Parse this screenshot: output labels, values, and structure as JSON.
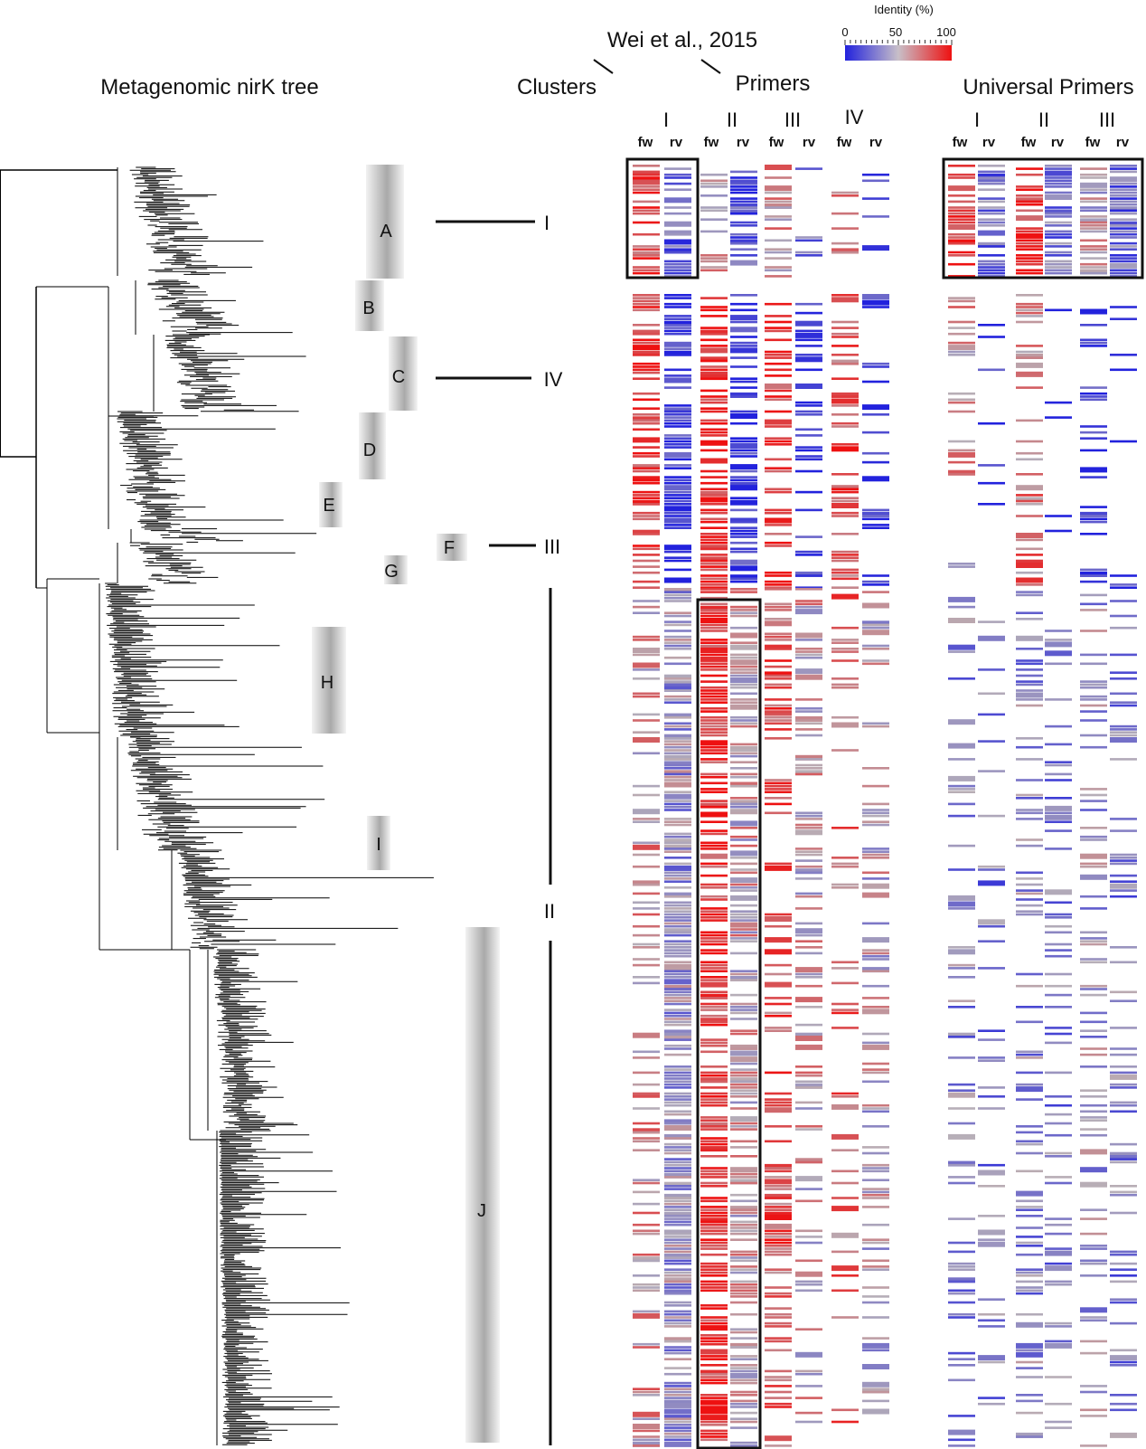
{
  "figure": {
    "tree_title": "Metagenomic nirK tree",
    "clusters_label": "Clusters",
    "reference_label": "Wei et al., 2015",
    "primers_label": "Primers",
    "universal_label": "Universal Primers",
    "legend": {
      "title": "Identity (%)",
      "ticks": [
        "0",
        "50",
        "100"
      ],
      "low_color": "#2222dd",
      "mid_color": "#b8b0b8",
      "high_color": "#ee1111"
    },
    "direction_labels": {
      "fw": "fw",
      "rv": "rv"
    },
    "clades": [
      {
        "id": "A",
        "label": "A",
        "cluster": "I"
      },
      {
        "id": "B",
        "label": "B",
        "cluster": ""
      },
      {
        "id": "C",
        "label": "C",
        "cluster": "IV"
      },
      {
        "id": "D",
        "label": "D",
        "cluster": ""
      },
      {
        "id": "E",
        "label": "E",
        "cluster": ""
      },
      {
        "id": "F",
        "label": "F",
        "cluster": "III"
      },
      {
        "id": "G",
        "label": "G",
        "cluster": ""
      },
      {
        "id": "H",
        "label": "H",
        "cluster": "II"
      },
      {
        "id": "I",
        "label": "I",
        "cluster": "II"
      },
      {
        "id": "J",
        "label": "J",
        "cluster": "II"
      }
    ],
    "cluster_labels": [
      "I",
      "IV",
      "III",
      "II"
    ],
    "wei_primer_sets": [
      "I",
      "II",
      "III",
      "IV"
    ],
    "universal_primer_sets": [
      "I",
      "II",
      "III"
    ],
    "highlight_boxes": [
      {
        "panel": "wei",
        "set": "I",
        "region": "clade A"
      },
      {
        "panel": "wei",
        "set": "II",
        "region": "cluster II"
      },
      {
        "panel": "universal",
        "set": "I-III",
        "region": "clade A"
      }
    ]
  }
}
